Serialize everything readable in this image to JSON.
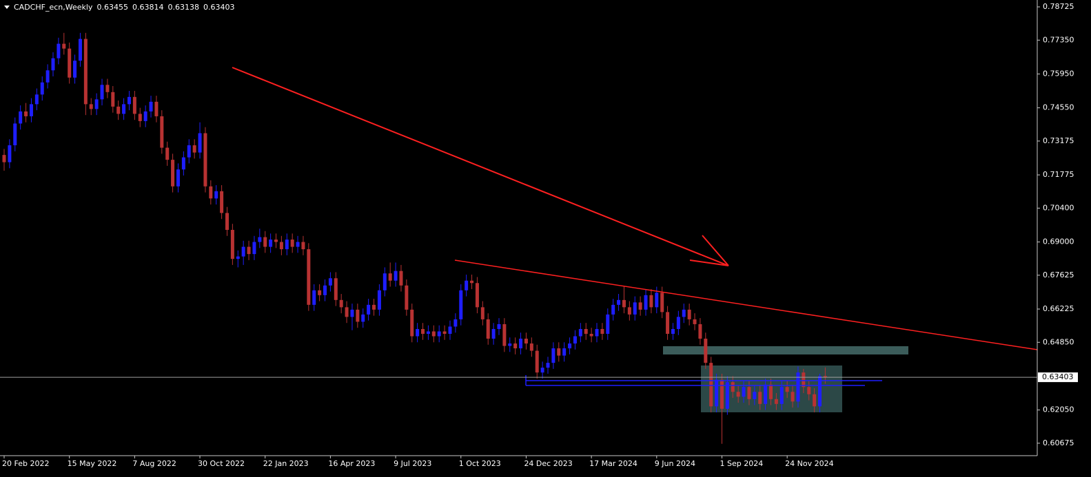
{
  "chart_data": {
    "type": "candlestick",
    "title": "CADCHF_ecn,Weekly",
    "header_values": [
      0.63455,
      0.63814,
      0.63138,
      0.63403
    ],
    "up_color": "#1e1eff",
    "down_color": "#b83232",
    "current_price": 0.63403,
    "ylim": [
      0.6016,
      0.7901
    ],
    "yticks": [
      0.78725,
      {
        "value": 0.7735,
        "label": "0.77350"
      },
      {
        "value": 0.7595,
        "label": "0.75950"
      },
      {
        "value": 0.7455,
        "label": "0.74550"
      },
      0.73175,
      0.71775,
      {
        "value": 0.704,
        "label": "0.70400"
      },
      {
        "value": 0.69,
        "label": "0.69000"
      },
      0.67625,
      0.66225,
      {
        "value": 0.6485,
        "label": "0.64850"
      },
      {
        "value": 0.6205,
        "label": "0.62050"
      },
      0.60675
    ],
    "categories": [
      "20 Feb 2022",
      null,
      null,
      null,
      null,
      null,
      null,
      null,
      null,
      null,
      null,
      null,
      "15 May 2022",
      null,
      null,
      null,
      null,
      null,
      null,
      null,
      null,
      null,
      null,
      null,
      "7 Aug 2022",
      null,
      null,
      null,
      null,
      null,
      null,
      null,
      null,
      null,
      null,
      null,
      "30 Oct 2022",
      null,
      null,
      null,
      null,
      null,
      null,
      null,
      null,
      null,
      null,
      null,
      "22 Jan 2023",
      null,
      null,
      null,
      null,
      null,
      null,
      null,
      null,
      null,
      null,
      null,
      "16 Apr 2023",
      null,
      null,
      null,
      null,
      null,
      null,
      null,
      null,
      null,
      null,
      null,
      "9 Jul 2023",
      null,
      null,
      null,
      null,
      null,
      null,
      null,
      null,
      null,
      null,
      null,
      "1 Oct 2023",
      null,
      null,
      null,
      null,
      null,
      null,
      null,
      null,
      null,
      null,
      null,
      "24 Dec 2023",
      null,
      null,
      null,
      null,
      null,
      null,
      null,
      null,
      null,
      null,
      null,
      "17 Mar 2024",
      null,
      null,
      null,
      null,
      null,
      null,
      null,
      null,
      null,
      null,
      null,
      "9 Jun 2024",
      null,
      null,
      null,
      null,
      null,
      null,
      null,
      null,
      null,
      null,
      null,
      "1 Sep 2024",
      null,
      null,
      null,
      null,
      null,
      null,
      null,
      null,
      null,
      null,
      null,
      "24 Nov 2024",
      null,
      null,
      null,
      null,
      null,
      null,
      null
    ],
    "ohlc": [
      [
        0.726,
        0.7285,
        0.7195,
        0.723
      ],
      [
        0.723,
        0.7325,
        0.7205,
        0.73
      ],
      [
        0.73,
        0.7415,
        0.7275,
        0.739
      ],
      [
        0.739,
        0.7465,
        0.7365,
        0.744
      ],
      [
        0.744,
        0.7475,
        0.7395,
        0.742
      ],
      [
        0.742,
        0.7495,
        0.7395,
        0.747
      ],
      [
        0.747,
        0.7535,
        0.7445,
        0.751
      ],
      [
        0.751,
        0.7585,
        0.7485,
        0.756
      ],
      [
        0.756,
        0.7635,
        0.7535,
        0.761
      ],
      [
        0.761,
        0.7685,
        0.7585,
        0.766
      ],
      [
        0.766,
        0.7745,
        0.7635,
        0.772
      ],
      [
        0.772,
        0.7765,
        0.7675,
        0.77
      ],
      [
        0.77,
        0.7725,
        0.7555,
        0.758
      ],
      [
        0.758,
        0.7675,
        0.7555,
        0.765
      ],
      [
        0.765,
        0.7765,
        0.7625,
        0.774
      ],
      [
        0.774,
        0.7765,
        0.7425,
        0.747
      ],
      [
        0.747,
        0.7495,
        0.7425,
        0.745
      ],
      [
        0.745,
        0.7515,
        0.7425,
        0.749
      ],
      [
        0.749,
        0.7575,
        0.7465,
        0.755
      ],
      [
        0.755,
        0.7575,
        0.7495,
        0.752
      ],
      [
        0.752,
        0.7545,
        0.7435,
        0.746
      ],
      [
        0.746,
        0.7485,
        0.7405,
        0.743
      ],
      [
        0.743,
        0.7495,
        0.7405,
        0.747
      ],
      [
        0.747,
        0.7525,
        0.7445,
        0.75
      ],
      [
        0.75,
        0.7525,
        0.7405,
        0.743
      ],
      [
        0.743,
        0.7455,
        0.7375,
        0.74
      ],
      [
        0.74,
        0.7465,
        0.7375,
        0.744
      ],
      [
        0.744,
        0.7505,
        0.7415,
        0.748
      ],
      [
        0.748,
        0.7505,
        0.7395,
        0.742
      ],
      [
        0.742,
        0.7445,
        0.7265,
        0.729
      ],
      [
        0.729,
        0.7315,
        0.7215,
        0.724
      ],
      [
        0.724,
        0.7265,
        0.7105,
        0.713
      ],
      [
        0.713,
        0.7225,
        0.7105,
        0.72
      ],
      [
        0.72,
        0.7275,
        0.7175,
        0.725
      ],
      [
        0.725,
        0.7325,
        0.7225,
        0.73
      ],
      [
        0.73,
        0.7325,
        0.7245,
        0.727
      ],
      [
        0.727,
        0.7395,
        0.7245,
        0.735
      ],
      [
        0.735,
        0.7375,
        0.7105,
        0.713
      ],
      [
        0.713,
        0.7155,
        0.7055,
        0.708
      ],
      [
        0.708,
        0.7135,
        0.7055,
        0.711
      ],
      [
        0.711,
        0.7135,
        0.6995,
        0.702
      ],
      [
        0.702,
        0.7045,
        0.6925,
        0.695
      ],
      [
        0.695,
        0.6975,
        0.6805,
        0.683
      ],
      [
        0.683,
        0.6865,
        0.6795,
        0.684
      ],
      [
        0.684,
        0.6905,
        0.6805,
        0.688
      ],
      [
        0.688,
        0.6905,
        0.6825,
        0.685
      ],
      [
        0.685,
        0.6925,
        0.6825,
        0.69
      ],
      [
        0.69,
        0.6955,
        0.6875,
        0.692
      ],
      [
        0.692,
        0.6945,
        0.6855,
        0.688
      ],
      [
        0.688,
        0.6935,
        0.6855,
        0.691
      ],
      [
        0.691,
        0.6935,
        0.6875,
        0.69
      ],
      [
        0.69,
        0.6925,
        0.6845,
        0.687
      ],
      [
        0.687,
        0.6935,
        0.6845,
        0.691
      ],
      [
        0.691,
        0.6935,
        0.6855,
        0.688
      ],
      [
        0.688,
        0.6925,
        0.6855,
        0.69
      ],
      [
        0.69,
        0.6925,
        0.6845,
        0.687
      ],
      [
        0.687,
        0.6895,
        0.6615,
        0.664
      ],
      [
        0.664,
        0.6725,
        0.6615,
        0.67
      ],
      [
        0.67,
        0.6725,
        0.6655,
        0.668
      ],
      [
        0.668,
        0.6745,
        0.6655,
        0.672
      ],
      [
        0.672,
        0.6775,
        0.6695,
        0.675
      ],
      [
        0.675,
        0.6775,
        0.6635,
        0.666
      ],
      [
        0.666,
        0.6685,
        0.6605,
        0.663
      ],
      [
        0.663,
        0.6655,
        0.6565,
        0.659
      ],
      [
        0.659,
        0.6645,
        0.6535,
        0.662
      ],
      [
        0.662,
        0.6645,
        0.6545,
        0.657
      ],
      [
        0.657,
        0.6625,
        0.6545,
        0.66
      ],
      [
        0.66,
        0.6665,
        0.6575,
        0.664
      ],
      [
        0.664,
        0.6665,
        0.6595,
        0.662
      ],
      [
        0.662,
        0.6725,
        0.6595,
        0.67
      ],
      [
        0.67,
        0.6795,
        0.6675,
        0.677
      ],
      [
        0.677,
        0.6815,
        0.6715,
        0.674
      ],
      [
        0.674,
        0.6815,
        0.6715,
        0.678
      ],
      [
        0.678,
        0.6805,
        0.6695,
        0.672
      ],
      [
        0.672,
        0.6745,
        0.6595,
        0.662
      ],
      [
        0.662,
        0.6645,
        0.6485,
        0.651
      ],
      [
        0.651,
        0.6565,
        0.6485,
        0.654
      ],
      [
        0.654,
        0.6565,
        0.6495,
        0.652
      ],
      [
        0.652,
        0.6555,
        0.6495,
        0.653
      ],
      [
        0.653,
        0.6555,
        0.6485,
        0.651
      ],
      [
        0.651,
        0.6555,
        0.6485,
        0.653
      ],
      [
        0.653,
        0.6555,
        0.6495,
        0.652
      ],
      [
        0.652,
        0.6575,
        0.6495,
        0.655
      ],
      [
        0.655,
        0.6605,
        0.6525,
        0.658
      ],
      [
        0.658,
        0.6725,
        0.6555,
        0.67
      ],
      [
        0.67,
        0.6765,
        0.6675,
        0.674
      ],
      [
        0.674,
        0.6765,
        0.6705,
        0.673
      ],
      [
        0.673,
        0.6755,
        0.6605,
        0.663
      ],
      [
        0.663,
        0.6655,
        0.6555,
        0.658
      ],
      [
        0.658,
        0.6605,
        0.6475,
        0.65
      ],
      [
        0.65,
        0.6565,
        0.6475,
        0.654
      ],
      [
        0.654,
        0.6585,
        0.6515,
        0.656
      ],
      [
        0.656,
        0.6585,
        0.6445,
        0.647
      ],
      [
        0.647,
        0.6505,
        0.6445,
        0.648
      ],
      [
        0.648,
        0.6505,
        0.6435,
        0.646
      ],
      [
        0.646,
        0.6525,
        0.6435,
        0.65
      ],
      [
        0.65,
        0.6525,
        0.6455,
        0.648
      ],
      [
        0.648,
        0.6505,
        0.6425,
        0.645
      ],
      [
        0.645,
        0.6475,
        0.6335,
        0.636
      ],
      [
        0.636,
        0.6405,
        0.6335,
        0.638
      ],
      [
        0.638,
        0.6425,
        0.6355,
        0.64
      ],
      [
        0.64,
        0.6485,
        0.6375,
        0.646
      ],
      [
        0.646,
        0.6485,
        0.6405,
        0.643
      ],
      [
        0.643,
        0.6485,
        0.6405,
        0.646
      ],
      [
        0.646,
        0.6505,
        0.6435,
        0.648
      ],
      [
        0.648,
        0.6535,
        0.6455,
        0.651
      ],
      [
        0.651,
        0.6565,
        0.6485,
        0.654
      ],
      [
        0.654,
        0.6565,
        0.6495,
        0.652
      ],
      [
        0.652,
        0.6545,
        0.6485,
        0.651
      ],
      [
        0.651,
        0.6565,
        0.6485,
        0.654
      ],
      [
        0.654,
        0.6565,
        0.6495,
        0.652
      ],
      [
        0.652,
        0.6625,
        0.6495,
        0.66
      ],
      [
        0.66,
        0.6665,
        0.6575,
        0.664
      ],
      [
        0.664,
        0.6685,
        0.6615,
        0.666
      ],
      [
        0.666,
        0.6715,
        0.6605,
        0.663
      ],
      [
        0.663,
        0.6655,
        0.6575,
        0.66
      ],
      [
        0.66,
        0.6675,
        0.6575,
        0.665
      ],
      [
        0.665,
        0.6675,
        0.6595,
        0.662
      ],
      [
        0.662,
        0.6705,
        0.6595,
        0.668
      ],
      [
        0.668,
        0.6705,
        0.6605,
        0.663
      ],
      [
        0.663,
        0.6715,
        0.6605,
        0.669
      ],
      [
        0.669,
        0.6715,
        0.6585,
        0.661
      ],
      [
        0.661,
        0.6635,
        0.6495,
        0.652
      ],
      [
        0.652,
        0.6565,
        0.6495,
        0.654
      ],
      [
        0.654,
        0.6615,
        0.6515,
        0.659
      ],
      [
        0.659,
        0.6645,
        0.6565,
        0.662
      ],
      [
        0.662,
        0.6645,
        0.6555,
        0.658
      ],
      [
        0.658,
        0.6605,
        0.6535,
        0.656
      ],
      [
        0.656,
        0.6585,
        0.6475,
        0.65
      ],
      [
        0.65,
        0.6525,
        0.6375,
        0.64
      ],
      [
        0.64,
        0.6425,
        0.6195,
        0.622
      ],
      [
        0.622,
        0.6355,
        0.6195,
        0.633
      ],
      [
        0.633,
        0.6355,
        0.6065,
        0.621
      ],
      [
        0.621,
        0.6345,
        0.6185,
        0.632
      ],
      [
        0.632,
        0.6345,
        0.6255,
        0.628
      ],
      [
        0.628,
        0.6305,
        0.6235,
        0.626
      ],
      [
        0.626,
        0.6325,
        0.6235,
        0.63
      ],
      [
        0.63,
        0.6325,
        0.6225,
        0.625
      ],
      [
        0.625,
        0.6305,
        0.6225,
        0.628
      ],
      [
        0.628,
        0.6305,
        0.6205,
        0.623
      ],
      [
        0.623,
        0.6335,
        0.6205,
        0.631
      ],
      [
        0.631,
        0.6335,
        0.6225,
        0.625
      ],
      [
        0.625,
        0.6275,
        0.6205,
        0.623
      ],
      [
        0.623,
        0.6325,
        0.6205,
        0.63
      ],
      [
        0.63,
        0.6325,
        0.6255,
        0.628
      ],
      [
        0.628,
        0.6305,
        0.6215,
        0.624
      ],
      [
        0.624,
        0.6385,
        0.6215,
        0.636
      ],
      [
        0.636,
        0.6375,
        0.6275,
        0.63
      ],
      [
        0.63,
        0.6325,
        0.6245,
        0.627
      ],
      [
        0.627,
        0.6295,
        0.6195,
        0.622
      ],
      [
        0.622,
        0.6355,
        0.6195,
        0.6345
      ],
      [
        0.63455,
        0.63814,
        0.63138,
        0.63403
      ]
    ]
  }
}
